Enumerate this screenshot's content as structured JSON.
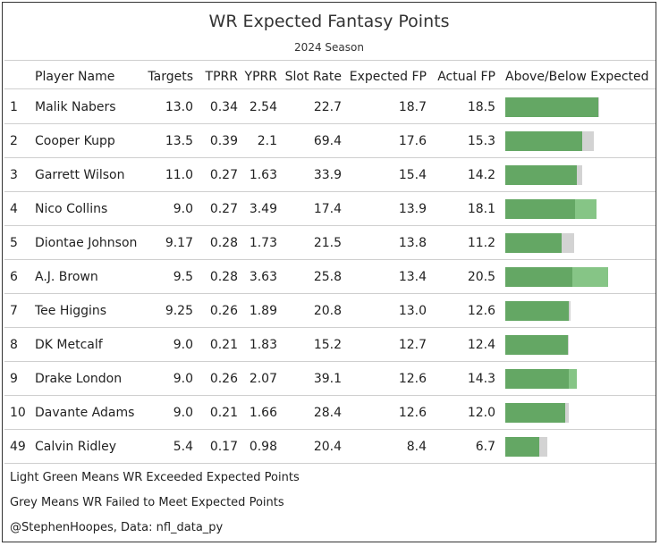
{
  "title": "WR Expected Fantasy Points",
  "subtitle": "2024 Season",
  "headers": {
    "rank": "",
    "player": "Player Name",
    "targets": "Targets",
    "tprr": "TPRR",
    "yprr": "YPRR",
    "slot": "Slot Rate",
    "expected": "Expected FP",
    "actual": "Actual FP",
    "diff": "Above/Below Expected"
  },
  "colors": {
    "base_green": "#64a764",
    "light_green": "#86c586",
    "grey": "#d3d3d3"
  },
  "chart_data": {
    "type": "table",
    "title": "WR Expected Fantasy Points",
    "subtitle": "2024 Season",
    "bar_column": "Above/Below Expected",
    "bar_scale_max": 20.5,
    "rows": [
      {
        "rank": "1",
        "player": "Malik Nabers",
        "targets": "13.0",
        "tprr": "0.34",
        "yprr": "2.54",
        "slot": "22.7",
        "expected": "18.7",
        "actual": "18.5"
      },
      {
        "rank": "2",
        "player": "Cooper Kupp",
        "targets": "13.5",
        "tprr": "0.39",
        "yprr": "2.1",
        "slot": "69.4",
        "expected": "17.6",
        "actual": "15.3"
      },
      {
        "rank": "3",
        "player": "Garrett Wilson",
        "targets": "11.0",
        "tprr": "0.27",
        "yprr": "1.63",
        "slot": "33.9",
        "expected": "15.4",
        "actual": "14.2"
      },
      {
        "rank": "4",
        "player": "Nico Collins",
        "targets": "9.0",
        "tprr": "0.27",
        "yprr": "3.49",
        "slot": "17.4",
        "expected": "13.9",
        "actual": "18.1"
      },
      {
        "rank": "5",
        "player": "Diontae Johnson",
        "targets": "9.17",
        "tprr": "0.28",
        "yprr": "1.73",
        "slot": "21.5",
        "expected": "13.8",
        "actual": "11.2"
      },
      {
        "rank": "6",
        "player": "A.J. Brown",
        "targets": "9.5",
        "tprr": "0.28",
        "yprr": "3.63",
        "slot": "25.8",
        "expected": "13.4",
        "actual": "20.5"
      },
      {
        "rank": "7",
        "player": "Tee Higgins",
        "targets": "9.25",
        "tprr": "0.26",
        "yprr": "1.89",
        "slot": "20.8",
        "expected": "13.0",
        "actual": "12.6"
      },
      {
        "rank": "8",
        "player": "DK Metcalf",
        "targets": "9.0",
        "tprr": "0.21",
        "yprr": "1.83",
        "slot": "15.2",
        "expected": "12.7",
        "actual": "12.4"
      },
      {
        "rank": "9",
        "player": "Drake London",
        "targets": "9.0",
        "tprr": "0.26",
        "yprr": "2.07",
        "slot": "39.1",
        "expected": "12.6",
        "actual": "14.3"
      },
      {
        "rank": "10",
        "player": "Davante Adams",
        "targets": "9.0",
        "tprr": "0.21",
        "yprr": "1.66",
        "slot": "28.4",
        "expected": "12.6",
        "actual": "12.0"
      },
      {
        "rank": "49",
        "player": "Calvin Ridley",
        "targets": "5.4",
        "tprr": "0.17",
        "yprr": "0.98",
        "slot": "20.4",
        "expected": "8.4",
        "actual": "6.7"
      }
    ]
  },
  "footnotes": [
    "Light Green Means WR Exceeded Expected Points",
    "Grey Means WR Failed to Meet Expected Points",
    "@StephenHoopes, Data: nfl_data_py"
  ]
}
